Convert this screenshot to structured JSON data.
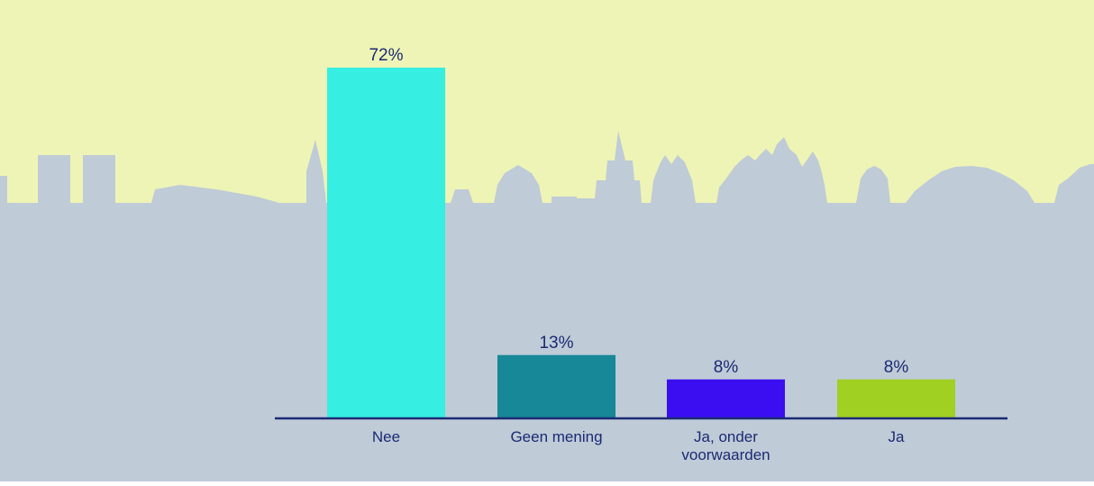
{
  "colors": {
    "sky": "#eef4b5",
    "ground": "#bfcbd7",
    "axis": "#1b2a73",
    "text": "#1b2a73"
  },
  "chart_data": {
    "type": "bar",
    "title": "",
    "xlabel": "",
    "ylabel": "",
    "ylim": [
      0,
      72
    ],
    "value_suffix": "%",
    "categories": [
      "Nee",
      "Geen mening",
      "Ja, onder voorwaarden",
      "Ja"
    ],
    "category_lines": [
      [
        "Nee"
      ],
      [
        "Geen mening"
      ],
      [
        "Ja, onder",
        "voorwaarden"
      ],
      [
        "Ja"
      ]
    ],
    "values": [
      72,
      13,
      8,
      8
    ],
    "bar_colors": [
      "#36eee1",
      "#168897",
      "#3a0ef0",
      "#a0d022"
    ],
    "grid": false,
    "legend": "none"
  }
}
